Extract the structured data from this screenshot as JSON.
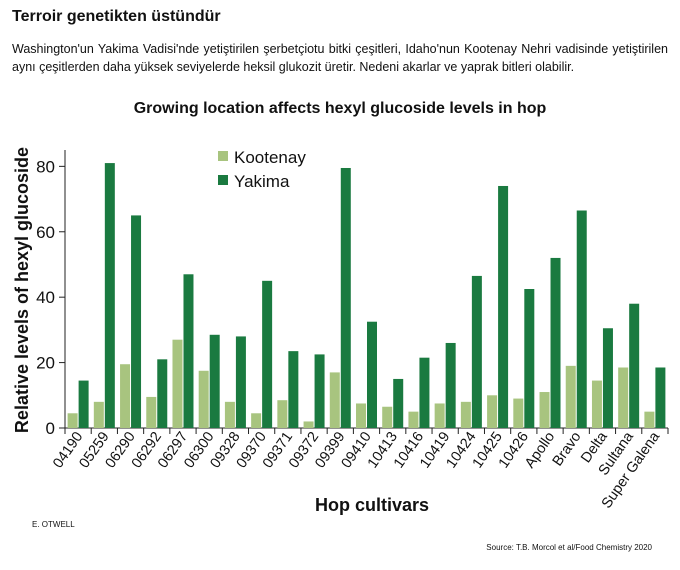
{
  "headline": "Terroir genetikten üstündür",
  "description": "Washington'un Yakima Vadisi'nde yetiştirilen şerbetçiotu bitki çeşitleri, Idaho'nun Kootenay Nehri vadisinde yetiştirilen aynı çeşitlerden daha yüksek seviyelerde heksil glukozit üretir. Nedeni akarlar ve yaprak bitleri olabilir.",
  "credit": "E. OTWELL",
  "source": "Source: T.B. Morcol et al/Food Chemistry 2020",
  "colors": {
    "kootenay": "#a8c47f",
    "yakima": "#1a7a40",
    "axis": "#222222"
  },
  "chart_data": {
    "type": "bar",
    "title": "Growing location affects hexyl glucoside levels in hop",
    "xlabel": "Hop cultivars",
    "ylabel": "Relative levels of hexyl glucoside",
    "ylim": [
      0,
      85
    ],
    "yticks": [
      0,
      20,
      40,
      60,
      80
    ],
    "legend_position": "top-left",
    "grid": false,
    "categories": [
      "04190",
      "05259",
      "06290",
      "06292",
      "06297",
      "06300",
      "09328",
      "09370",
      "09371",
      "09372",
      "09399",
      "09410",
      "10413",
      "10416",
      "10419",
      "10424",
      "10425",
      "10426",
      "Apollo",
      "Bravo",
      "Delta",
      "Sultana",
      "Super Galena"
    ],
    "series": [
      {
        "name": "Kootenay",
        "values": [
          4.5,
          8,
          19.5,
          9.5,
          27,
          17.5,
          8,
          4.5,
          8.5,
          2,
          17,
          7.5,
          6.5,
          5,
          7.5,
          8,
          10,
          9,
          11,
          19,
          14.5,
          18.5,
          5
        ]
      },
      {
        "name": "Yakima",
        "values": [
          14.5,
          81,
          65,
          21,
          47,
          28.5,
          28,
          45,
          23.5,
          22.5,
          79.5,
          32.5,
          15,
          21.5,
          26,
          46.5,
          74,
          42.5,
          52,
          66.5,
          30.5,
          38,
          18.5
        ]
      }
    ]
  }
}
